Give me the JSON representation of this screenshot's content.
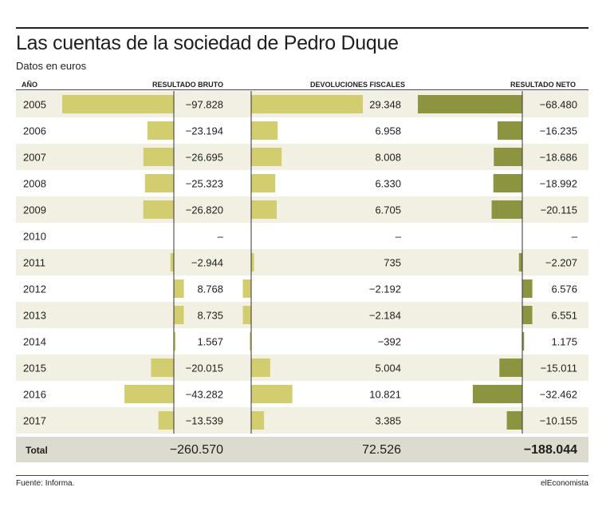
{
  "title": "Las cuentas de la sociedad de Pedro Duque",
  "subtitle": "Datos en euros",
  "headers": {
    "year": "AÑO",
    "gross": "RESULTADO BRUTO",
    "tax": "DEVOLUCIONES FISCALES",
    "net": "RESULTADO NETO"
  },
  "source": "Fuente: Informa.",
  "brand": "elEconomista",
  "colors": {
    "bar_light": "#d2cd6e",
    "bar_dark": "#8c9440",
    "stripe": "#f2f0e3",
    "total_band": "#dddbcf"
  },
  "chart_data": {
    "type": "bar",
    "orientation": "horizontal",
    "categories": [
      "2005",
      "2006",
      "2007",
      "2008",
      "2009",
      "2010",
      "2011",
      "2012",
      "2013",
      "2014",
      "2015",
      "2016",
      "2017"
    ],
    "series": [
      {
        "name": "RESULTADO BRUTO",
        "values": [
          -97828,
          -23194,
          -26695,
          -25323,
          -26820,
          null,
          -2944,
          8768,
          8735,
          1567,
          -20015,
          -43282,
          -13539
        ],
        "labels": [
          "−97.828",
          "−23.194",
          "−26.695",
          "−25.323",
          "−26.820",
          "–",
          "−2.944",
          "8.768",
          "8.735",
          "1.567",
          "−20.015",
          "−43.282",
          "−13.539"
        ]
      },
      {
        "name": "DEVOLUCIONES FISCALES",
        "values": [
          29348,
          6958,
          8008,
          6330,
          6705,
          null,
          735,
          -2192,
          -2184,
          -392,
          5004,
          10821,
          3385
        ],
        "labels": [
          "29.348",
          "6.958",
          "8.008",
          "6.330",
          "6.705",
          "–",
          "735",
          "−2.192",
          "−2.184",
          "−392",
          "5.004",
          "10.821",
          "3.385"
        ]
      },
      {
        "name": "RESULTADO NETO",
        "values": [
          -68480,
          -16235,
          -18686,
          -18992,
          -20115,
          null,
          -2207,
          6576,
          6551,
          1175,
          -15011,
          -32462,
          -10155
        ],
        "labels": [
          "−68.480",
          "−16.235",
          "−18.686",
          "−18.992",
          "−20.115",
          "–",
          "−2.207",
          "6.576",
          "6.551",
          "1.175",
          "−15.011",
          "−32.462",
          "−10.155"
        ]
      }
    ],
    "totals": {
      "label": "Total",
      "values": [
        "−260.570",
        "72.526",
        "−188.044"
      ]
    }
  }
}
